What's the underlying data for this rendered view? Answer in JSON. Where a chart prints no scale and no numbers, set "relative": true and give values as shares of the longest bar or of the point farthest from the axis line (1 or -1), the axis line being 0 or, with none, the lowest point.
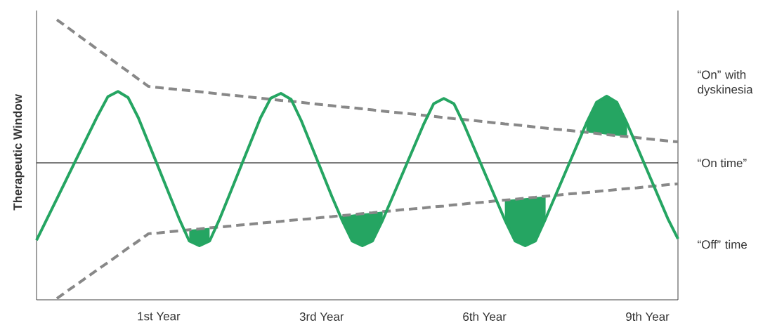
{
  "chart_data": {
    "type": "line",
    "relative": true,
    "ylabel": "Therapeutic Window",
    "categories": [
      null,
      null,
      null,
      null,
      null,
      null,
      null,
      null,
      null,
      null,
      null,
      null,
      "1st Year",
      null,
      null,
      null,
      null,
      null,
      null,
      null,
      null,
      null,
      null,
      null,
      null,
      null,
      null,
      null,
      "3rd Year",
      null,
      null,
      null,
      null,
      null,
      null,
      null,
      null,
      null,
      null,
      null,
      null,
      null,
      null,
      null,
      "6th Year",
      null,
      null,
      null,
      null,
      null,
      null,
      null,
      null,
      null,
      null,
      null,
      null,
      null,
      null,
      null,
      "9th Year",
      null,
      null,
      null
    ],
    "series": [
      {
        "type": "line",
        "line_style": "dashed",
        "color": "#888888",
        "values": [
          null,
          null,
          1.0,
          0.974,
          0.947,
          0.921,
          0.894,
          0.868,
          0.841,
          0.815,
          0.788,
          0.762,
          0.758,
          0.754,
          0.751,
          0.747,
          0.743,
          0.739,
          0.735,
          0.731,
          0.728,
          0.724,
          0.72,
          0.716,
          0.712,
          0.709,
          0.705,
          0.701,
          0.697,
          0.693,
          0.689,
          0.686,
          0.682,
          0.678,
          0.674,
          0.67,
          0.667,
          0.663,
          0.659,
          0.655,
          0.651,
          0.647,
          0.644,
          0.64,
          0.636,
          0.632,
          0.628,
          0.625,
          0.621,
          0.617,
          0.613,
          0.609,
          0.606,
          0.602,
          0.598,
          0.594,
          0.59,
          0.586,
          0.583,
          0.579,
          0.575,
          0.571,
          0.567,
          0.564
        ]
      },
      {
        "type": "line",
        "line_style": "dashed",
        "color": "#888888",
        "values": [
          null,
          null,
          0.005,
          0.031,
          0.056,
          0.082,
          0.108,
          0.133,
          0.159,
          0.185,
          0.21,
          0.236,
          0.239,
          0.243,
          0.246,
          0.25,
          0.253,
          0.257,
          0.26,
          0.263,
          0.267,
          0.27,
          0.274,
          0.277,
          0.28,
          0.284,
          0.287,
          0.29,
          0.294,
          0.297,
          0.301,
          0.304,
          0.308,
          0.311,
          0.315,
          0.318,
          0.322,
          0.325,
          0.328,
          0.332,
          0.335,
          0.339,
          0.342,
          0.346,
          0.349,
          0.353,
          0.356,
          0.359,
          0.363,
          0.366,
          0.37,
          0.373,
          0.377,
          0.38,
          0.383,
          0.387,
          0.39,
          0.394,
          0.397,
          0.4,
          0.404,
          0.407,
          0.411,
          0.414
        ]
      },
      {
        "type": "line",
        "line_style": "solid",
        "color": "#25a562",
        "values": [
          0.213,
          0.287,
          0.361,
          0.435,
          0.509,
          0.583,
          0.657,
          0.725,
          0.744,
          0.722,
          0.65,
          0.56,
          0.47,
          0.38,
          0.29,
          0.21,
          0.193,
          0.21,
          0.29,
          0.38,
          0.47,
          0.56,
          0.65,
          0.72,
          0.737,
          0.716,
          0.64,
          0.55,
          0.46,
          0.37,
          0.285,
          0.21,
          0.193,
          0.21,
          0.285,
          0.37,
          0.455,
          0.54,
          0.625,
          0.7,
          0.719,
          0.7,
          0.625,
          0.54,
          0.455,
          0.37,
          0.285,
          0.21,
          0.193,
          0.21,
          0.29,
          0.375,
          0.46,
          0.545,
          0.63,
          0.705,
          0.727,
          0.705,
          0.63,
          0.545,
          0.46,
          0.375,
          0.29,
          0.218
        ],
        "lower": [
          null,
          null,
          null,
          null,
          null,
          null,
          null,
          null,
          null,
          null,
          null,
          null,
          null,
          null,
          null,
          0.21,
          0.193,
          0.21,
          null,
          null,
          null,
          null,
          null,
          null,
          null,
          null,
          null,
          null,
          null,
          null,
          0.285,
          0.21,
          0.193,
          0.21,
          0.285,
          null,
          null,
          null,
          null,
          null,
          null,
          null,
          null,
          null,
          null,
          null,
          0.285,
          0.21,
          0.193,
          0.21,
          0.29,
          null,
          null,
          null,
          0.598,
          0.594,
          0.59,
          0.586,
          0.583,
          null,
          null,
          null,
          null,
          null
        ],
        "upper": [
          null,
          null,
          null,
          null,
          null,
          null,
          null,
          null,
          null,
          null,
          null,
          null,
          null,
          null,
          null,
          0.25,
          0.253,
          0.257,
          null,
          null,
          null,
          null,
          null,
          null,
          null,
          null,
          null,
          null,
          null,
          null,
          0.301,
          0.304,
          0.308,
          0.311,
          0.315,
          null,
          null,
          null,
          null,
          null,
          null,
          null,
          null,
          null,
          null,
          null,
          0.356,
          0.359,
          0.363,
          0.366,
          0.37,
          null,
          null,
          null,
          0.63,
          0.705,
          0.727,
          0.705,
          0.63,
          null,
          null,
          null,
          null,
          null
        ]
      }
    ],
    "ref_lines": [
      {
        "axis": "y",
        "value": 0.489,
        "label": "“On time”",
        "color": "#000000"
      }
    ],
    "annotations": [
      "“On” with dyskinesia",
      "“Off” time"
    ]
  }
}
